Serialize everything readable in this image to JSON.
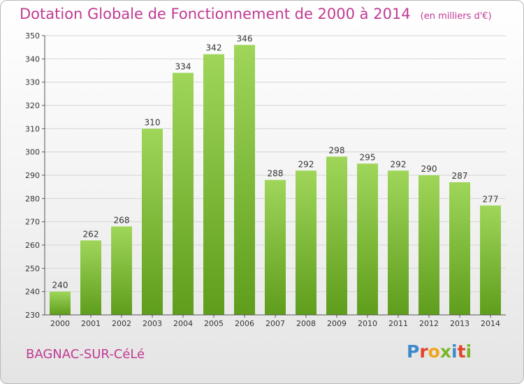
{
  "chart_data": {
    "type": "bar",
    "title": "Dotation Globale de Fonctionnement de 2000 à 2014",
    "unit": "(en milliers d'€)",
    "categories": [
      "2000",
      "2001",
      "2002",
      "2003",
      "2004",
      "2005",
      "2006",
      "2007",
      "2008",
      "2009",
      "2010",
      "2011",
      "2012",
      "2013",
      "2014"
    ],
    "values": [
      240,
      262,
      268,
      310,
      334,
      342,
      346,
      288,
      292,
      298,
      295,
      292,
      290,
      287,
      277
    ],
    "ylim": [
      230,
      350
    ],
    "yticks": [
      230,
      240,
      250,
      260,
      270,
      280,
      290,
      300,
      310,
      320,
      330,
      340,
      350
    ],
    "grid": true,
    "bar_color": "#7cc034",
    "grid_color": "#d4d4d4"
  },
  "footer": {
    "place": "BAGNAC-SUR-CéLé",
    "logo": "Proxiti",
    "logo_colors": [
      "#3d89c9",
      "#e3432a",
      "#f2a31b",
      "#79b729",
      "#3d89c9",
      "#e3432a",
      "#79b729"
    ]
  },
  "title_color": "#c03a93"
}
